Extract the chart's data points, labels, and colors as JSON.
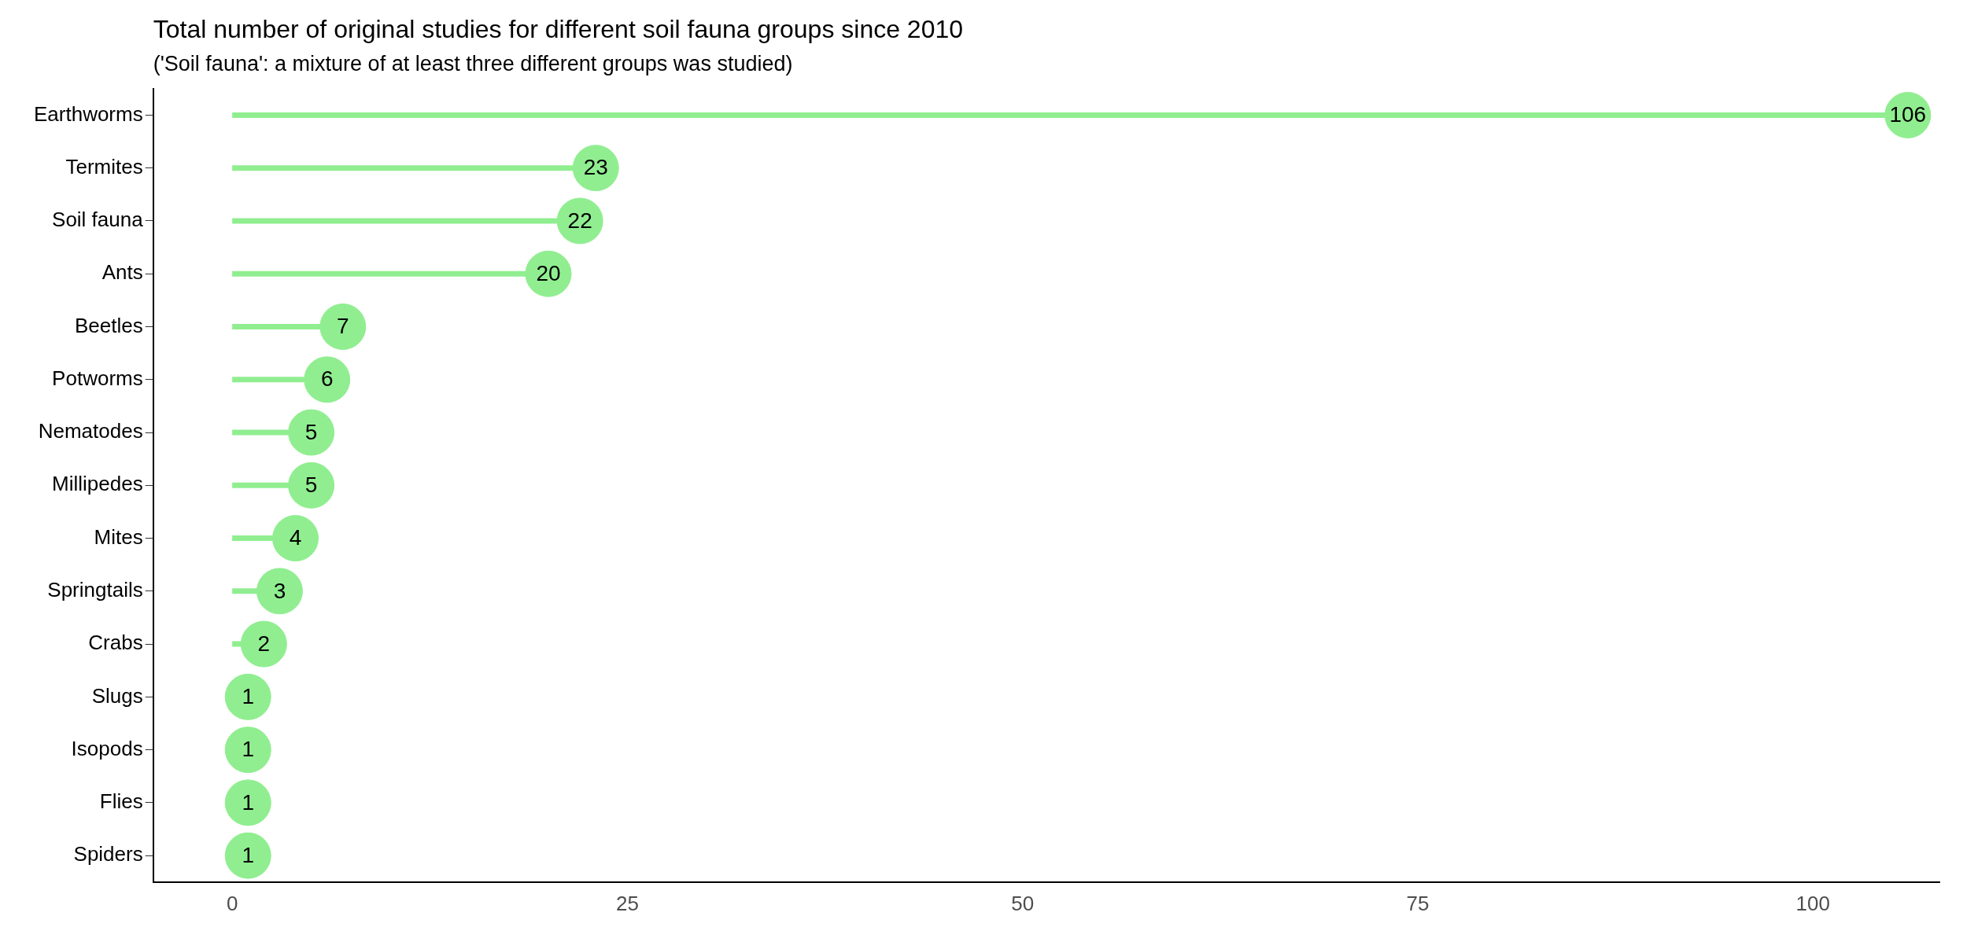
{
  "chart_data": {
    "type": "lollipop",
    "orientation": "horizontal",
    "title": "Total number of original studies for different soil fauna groups since 2010",
    "subtitle": "('Soil fauna': a mixture of at least three different groups was studied)",
    "categories": [
      "Earthworms",
      "Termites",
      "Soil fauna",
      "Ants",
      "Beetles",
      "Potworms",
      "Nematodes",
      "Millipedes",
      "Mites",
      "Springtails",
      "Crabs",
      "Slugs",
      "Isopods",
      "Flies",
      "Spiders"
    ],
    "values": [
      106,
      23,
      22,
      20,
      7,
      6,
      5,
      5,
      4,
      3,
      2,
      1,
      1,
      1,
      1
    ],
    "color": "#90ee90",
    "xlim": [
      -5,
      108
    ],
    "xticks": [
      0,
      25,
      50,
      75,
      100
    ],
    "grid": false,
    "legend": false,
    "data_labels": true,
    "marker": "circle"
  }
}
